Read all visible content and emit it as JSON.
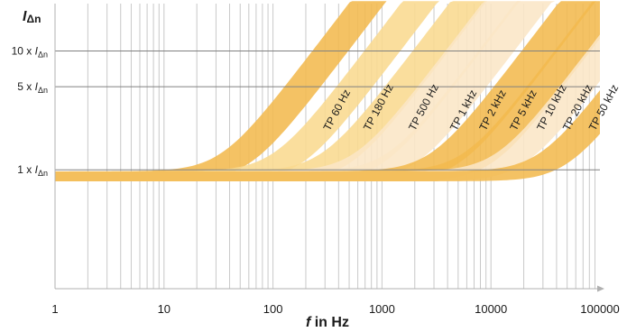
{
  "chart_data": {
    "type": "area",
    "title": "",
    "ylabel": {
      "italic": "I",
      "sub": "Δn"
    },
    "xlabel": {
      "italic": "f",
      "rest": " in Hz"
    },
    "x_scale": "log",
    "xlim": [
      1,
      100000
    ],
    "x_ticks": [
      {
        "value": 1,
        "label": "1"
      },
      {
        "value": 10,
        "label": "10"
      },
      {
        "value": 100,
        "label": "100"
      },
      {
        "value": 1000,
        "label": "1000"
      },
      {
        "value": 10000,
        "label": "10000"
      },
      {
        "value": 100000,
        "label": "100000"
      }
    ],
    "y_scale": "log",
    "ylim": [
      0.1,
      25
    ],
    "y_ticks": [
      {
        "value": 1,
        "prefix": "1 x ",
        "italic": "I",
        "sub": "Δn"
      },
      {
        "value": 5,
        "prefix": "5 x ",
        "italic": "I",
        "sub": "Δn"
      },
      {
        "value": 10,
        "prefix": "10 x ",
        "italic": "I",
        "sub": "Δn"
      }
    ],
    "grid": true,
    "colors": {
      "dark": "#f3b94f",
      "light": "#f9d990",
      "pale": "#fbe6c6",
      "grid": "#c8c8c8",
      "refline": "#808080",
      "axis": "#b0b0b0"
    },
    "series": [
      {
        "name": "TP 60 Hz",
        "corner_hz": 60,
        "tone": "dark",
        "label_at_hz": 330
      },
      {
        "name": "TP 180 Hz",
        "corner_hz": 180,
        "tone": "light",
        "label_at_hz": 770
      },
      {
        "name": "TP 500 Hz",
        "corner_hz": 500,
        "tone": "light",
        "label_at_hz": 2000
      },
      {
        "name": "TP 1 kHz",
        "corner_hz": 1000,
        "tone": "pale",
        "label_at_hz": 4800
      },
      {
        "name": "TP 2 kHz",
        "corner_hz": 2000,
        "tone": "pale",
        "label_at_hz": 8900
      },
      {
        "name": "TP 5 kHz",
        "corner_hz": 5000,
        "tone": "dark",
        "label_at_hz": 17000
      },
      {
        "name": "TP 10 kHz",
        "corner_hz": 10000,
        "tone": "dark",
        "label_at_hz": 30000
      },
      {
        "name": "TP 20 kHz",
        "corner_hz": 20000,
        "tone": "pale",
        "label_at_hz": 52000
      },
      {
        "name": "TP 50 kHz",
        "corner_hz": 50000,
        "tone": "dark",
        "label_at_hz": 90000
      }
    ]
  }
}
